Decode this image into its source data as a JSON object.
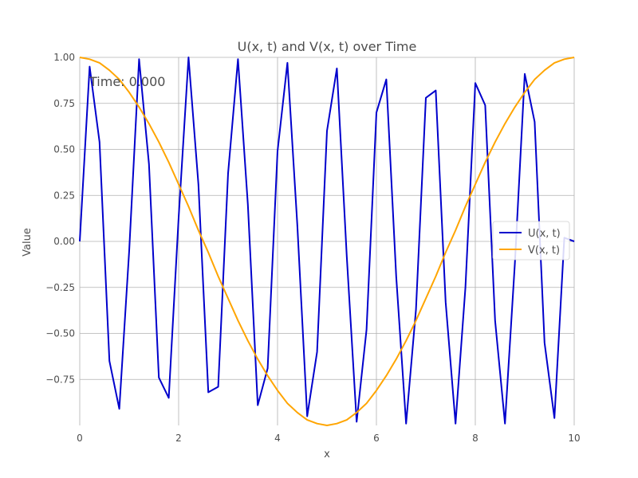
{
  "chart_data": {
    "type": "line",
    "title": "U(x, t) and V(x, t) over Time",
    "xlabel": "x",
    "ylabel": "Value",
    "xlim": [
      0,
      10
    ],
    "ylim": [
      -1.0,
      1.0
    ],
    "xticks": [
      0,
      2,
      4,
      6,
      8,
      10
    ],
    "xtick_labels": [
      "0",
      "2",
      "4",
      "6",
      "8",
      "10"
    ],
    "yticks": [
      -0.75,
      -0.5,
      -0.25,
      0.0,
      0.25,
      0.5,
      0.75,
      1.0
    ],
    "ytick_labels": [
      "−0.75",
      "−0.50",
      "−0.25",
      "0.00",
      "0.25",
      "0.50",
      "0.75",
      "1.00"
    ],
    "grid": true,
    "legend_position": "center-right",
    "annotation": "Time: 0.000",
    "series": [
      {
        "name": "U(x, t)",
        "color": "#0000cc",
        "x": [
          0,
          0.2,
          0.4,
          0.6,
          0.8,
          1.0,
          1.2,
          1.4,
          1.6,
          1.8,
          2.0,
          2.2,
          2.4,
          2.6,
          2.8,
          3.0,
          3.2,
          3.4,
          3.6,
          3.8,
          4.0,
          4.2,
          4.4,
          4.6,
          4.8,
          5.0,
          5.2,
          5.4,
          5.6,
          5.8,
          6.0,
          6.2,
          6.4,
          6.6,
          6.8,
          7.0,
          7.2,
          7.4,
          7.6,
          7.8,
          8.0,
          8.2,
          8.4,
          8.6,
          8.8,
          9.0,
          9.2,
          9.4,
          9.6,
          9.8,
          10.0
        ],
        "y": [
          0.0,
          0.95,
          0.54,
          -0.65,
          -0.91,
          -0.05,
          0.99,
          0.42,
          -0.74,
          -0.85,
          0.13,
          1.0,
          0.31,
          -0.82,
          -0.79,
          0.37,
          0.99,
          0.2,
          -0.89,
          -0.69,
          0.49,
          0.97,
          0.09,
          -0.95,
          -0.6,
          0.6,
          0.94,
          -0.08,
          -0.98,
          -0.48,
          0.7,
          0.88,
          -0.19,
          -0.99,
          -0.37,
          0.78,
          0.82,
          -0.33,
          -0.99,
          -0.25,
          0.86,
          0.74,
          -0.43,
          -0.99,
          -0.12,
          0.91,
          0.65,
          -0.55,
          -0.96,
          0.02,
          0.0
        ]
      },
      {
        "name": "V(x, t)",
        "color": "#ffa500",
        "x": [
          0,
          0.2,
          0.4,
          0.6,
          0.8,
          1.0,
          1.2,
          1.4,
          1.6,
          1.8,
          2.0,
          2.2,
          2.4,
          2.6,
          2.8,
          3.0,
          3.2,
          3.4,
          3.6,
          3.8,
          4.0,
          4.2,
          4.4,
          4.6,
          4.8,
          5.0,
          5.2,
          5.4,
          5.6,
          5.8,
          6.0,
          6.2,
          6.4,
          6.6,
          6.8,
          7.0,
          7.2,
          7.4,
          7.6,
          7.8,
          8.0,
          8.2,
          8.4,
          8.6,
          8.8,
          9.0,
          9.2,
          9.4,
          9.6,
          9.8,
          10.0
        ],
        "y": [
          1.0,
          0.99,
          0.97,
          0.93,
          0.88,
          0.81,
          0.73,
          0.64,
          0.54,
          0.43,
          0.31,
          0.19,
          0.06,
          -0.06,
          -0.19,
          -0.31,
          -0.43,
          -0.54,
          -0.64,
          -0.73,
          -0.81,
          -0.88,
          -0.93,
          -0.97,
          -0.99,
          -1.0,
          -0.99,
          -0.97,
          -0.93,
          -0.88,
          -0.81,
          -0.73,
          -0.64,
          -0.54,
          -0.43,
          -0.31,
          -0.19,
          -0.06,
          0.06,
          0.19,
          0.31,
          0.43,
          0.54,
          0.64,
          0.73,
          0.81,
          0.88,
          0.93,
          0.97,
          0.99,
          1.0
        ]
      }
    ]
  }
}
